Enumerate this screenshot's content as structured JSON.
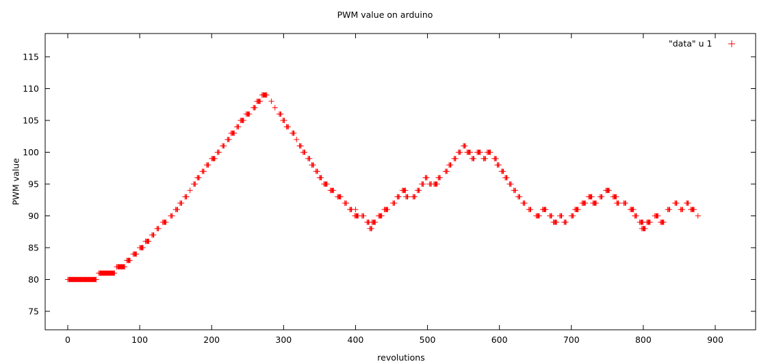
{
  "chart_data": {
    "type": "scatter",
    "title": "PWM value on arduino",
    "xlabel": "revolutions",
    "ylabel": "PWM value",
    "xlim": [
      -38,
      950
    ],
    "ylim": [
      72,
      118
    ],
    "xticks": [
      0,
      100,
      200,
      300,
      400,
      500,
      600,
      700,
      800,
      900
    ],
    "yticks": [
      75,
      80,
      85,
      90,
      95,
      100,
      105,
      110,
      115
    ],
    "grid": false,
    "legend": {
      "position": "top-right",
      "entries": [
        {
          "label": "\"data\" u 1",
          "marker": "+",
          "color": "#ff0000"
        }
      ]
    },
    "series": [
      {
        "name": "\"data\" u 1",
        "color": "#ff0000",
        "marker": "+",
        "segments": [
          [
            0,
            40,
            80
          ],
          [
            43,
            66,
            81
          ],
          [
            68,
            80,
            82
          ],
          [
            82,
            88,
            83
          ],
          [
            91,
            96,
            84
          ],
          [
            100,
            106,
            85
          ],
          [
            108,
            114,
            86
          ],
          [
            117,
            121,
            87
          ],
          [
            124,
            127,
            88
          ],
          [
            132,
            137,
            89
          ],
          [
            143,
            146,
            90
          ],
          [
            150,
            154,
            91
          ],
          [
            156,
            159,
            92
          ],
          [
            163,
            166,
            93
          ],
          [
            170,
            172,
            94
          ],
          [
            175,
            178,
            95
          ],
          [
            180,
            184,
            96
          ],
          [
            187,
            190,
            97
          ],
          [
            193,
            197,
            98
          ],
          [
            200,
            205,
            99
          ],
          [
            208,
            211,
            100
          ],
          [
            215,
            218,
            101
          ],
          [
            222,
            225,
            102
          ],
          [
            227,
            232,
            103
          ],
          [
            235,
            238,
            104
          ],
          [
            240,
            245,
            105
          ],
          [
            248,
            253,
            106
          ],
          [
            258,
            262,
            107
          ],
          [
            263,
            268,
            108
          ],
          [
            270,
            277,
            109
          ],
          [
            283,
            285,
            108
          ],
          [
            288,
            290,
            107
          ],
          [
            294,
            297,
            106
          ],
          [
            299,
            302,
            105
          ],
          [
            304,
            308,
            104
          ],
          [
            312,
            316,
            103
          ],
          [
            318,
            320,
            102
          ],
          [
            322,
            325,
            101
          ],
          [
            327,
            331,
            100
          ],
          [
            334,
            337,
            99
          ],
          [
            339,
            343,
            98
          ],
          [
            345,
            348,
            97
          ],
          [
            350,
            354,
            96
          ],
          [
            356,
            361,
            95
          ],
          [
            365,
            370,
            94
          ],
          [
            375,
            380,
            93
          ],
          [
            385,
            388,
            92
          ],
          [
            392,
            396,
            91
          ],
          [
            400,
            402,
            91
          ],
          [
            399,
            405,
            90
          ],
          [
            409,
            412,
            90
          ],
          [
            416,
            420,
            89
          ],
          [
            423,
            428,
            89
          ],
          [
            420,
            424,
            88
          ],
          [
            432,
            437,
            90
          ],
          [
            440,
            446,
            91
          ],
          [
            452,
            455,
            92
          ],
          [
            458,
            462,
            93
          ],
          [
            465,
            470,
            94
          ],
          [
            470,
            474,
            93
          ],
          [
            480,
            484,
            93
          ],
          [
            486,
            490,
            94
          ],
          [
            492,
            495,
            95
          ],
          [
            497,
            500,
            96
          ],
          [
            503,
            506,
            95
          ],
          [
            509,
            514,
            95
          ],
          [
            515,
            519,
            96
          ],
          [
            525,
            528,
            97
          ],
          [
            530,
            534,
            98
          ],
          [
            537,
            540,
            99
          ],
          [
            543,
            547,
            100
          ],
          [
            550,
            554,
            101
          ],
          [
            555,
            560,
            100
          ],
          [
            562,
            566,
            99
          ],
          [
            569,
            574,
            100
          ],
          [
            578,
            582,
            99
          ],
          [
            583,
            588,
            100
          ],
          [
            593,
            597,
            99
          ],
          [
            597,
            600,
            98
          ],
          [
            603,
            607,
            97
          ],
          [
            608,
            612,
            96
          ],
          [
            614,
            617,
            95
          ],
          [
            620,
            623,
            94
          ],
          [
            626,
            629,
            93
          ],
          [
            633,
            636,
            92
          ],
          [
            641,
            645,
            91
          ],
          [
            651,
            656,
            90
          ],
          [
            660,
            665,
            91
          ],
          [
            670,
            674,
            90
          ],
          [
            675,
            680,
            89
          ],
          [
            684,
            688,
            90
          ],
          [
            690,
            694,
            89
          ],
          [
            700,
            704,
            90
          ],
          [
            705,
            710,
            91
          ],
          [
            715,
            720,
            92
          ],
          [
            724,
            729,
            93
          ],
          [
            730,
            735,
            92
          ],
          [
            740,
            744,
            93
          ],
          [
            748,
            754,
            94
          ],
          [
            758,
            763,
            93
          ],
          [
            763,
            767,
            92
          ],
          [
            773,
            777,
            92
          ],
          [
            782,
            787,
            91
          ],
          [
            788,
            792,
            90
          ],
          [
            795,
            800,
            89
          ],
          [
            805,
            810,
            89
          ],
          [
            798,
            804,
            88
          ],
          [
            816,
            821,
            90
          ],
          [
            824,
            829,
            89
          ],
          [
            834,
            838,
            91
          ],
          [
            844,
            848,
            92
          ],
          [
            852,
            856,
            91
          ],
          [
            860,
            864,
            92
          ],
          [
            866,
            871,
            91
          ],
          [
            876,
            878,
            90
          ]
        ]
      }
    ]
  }
}
